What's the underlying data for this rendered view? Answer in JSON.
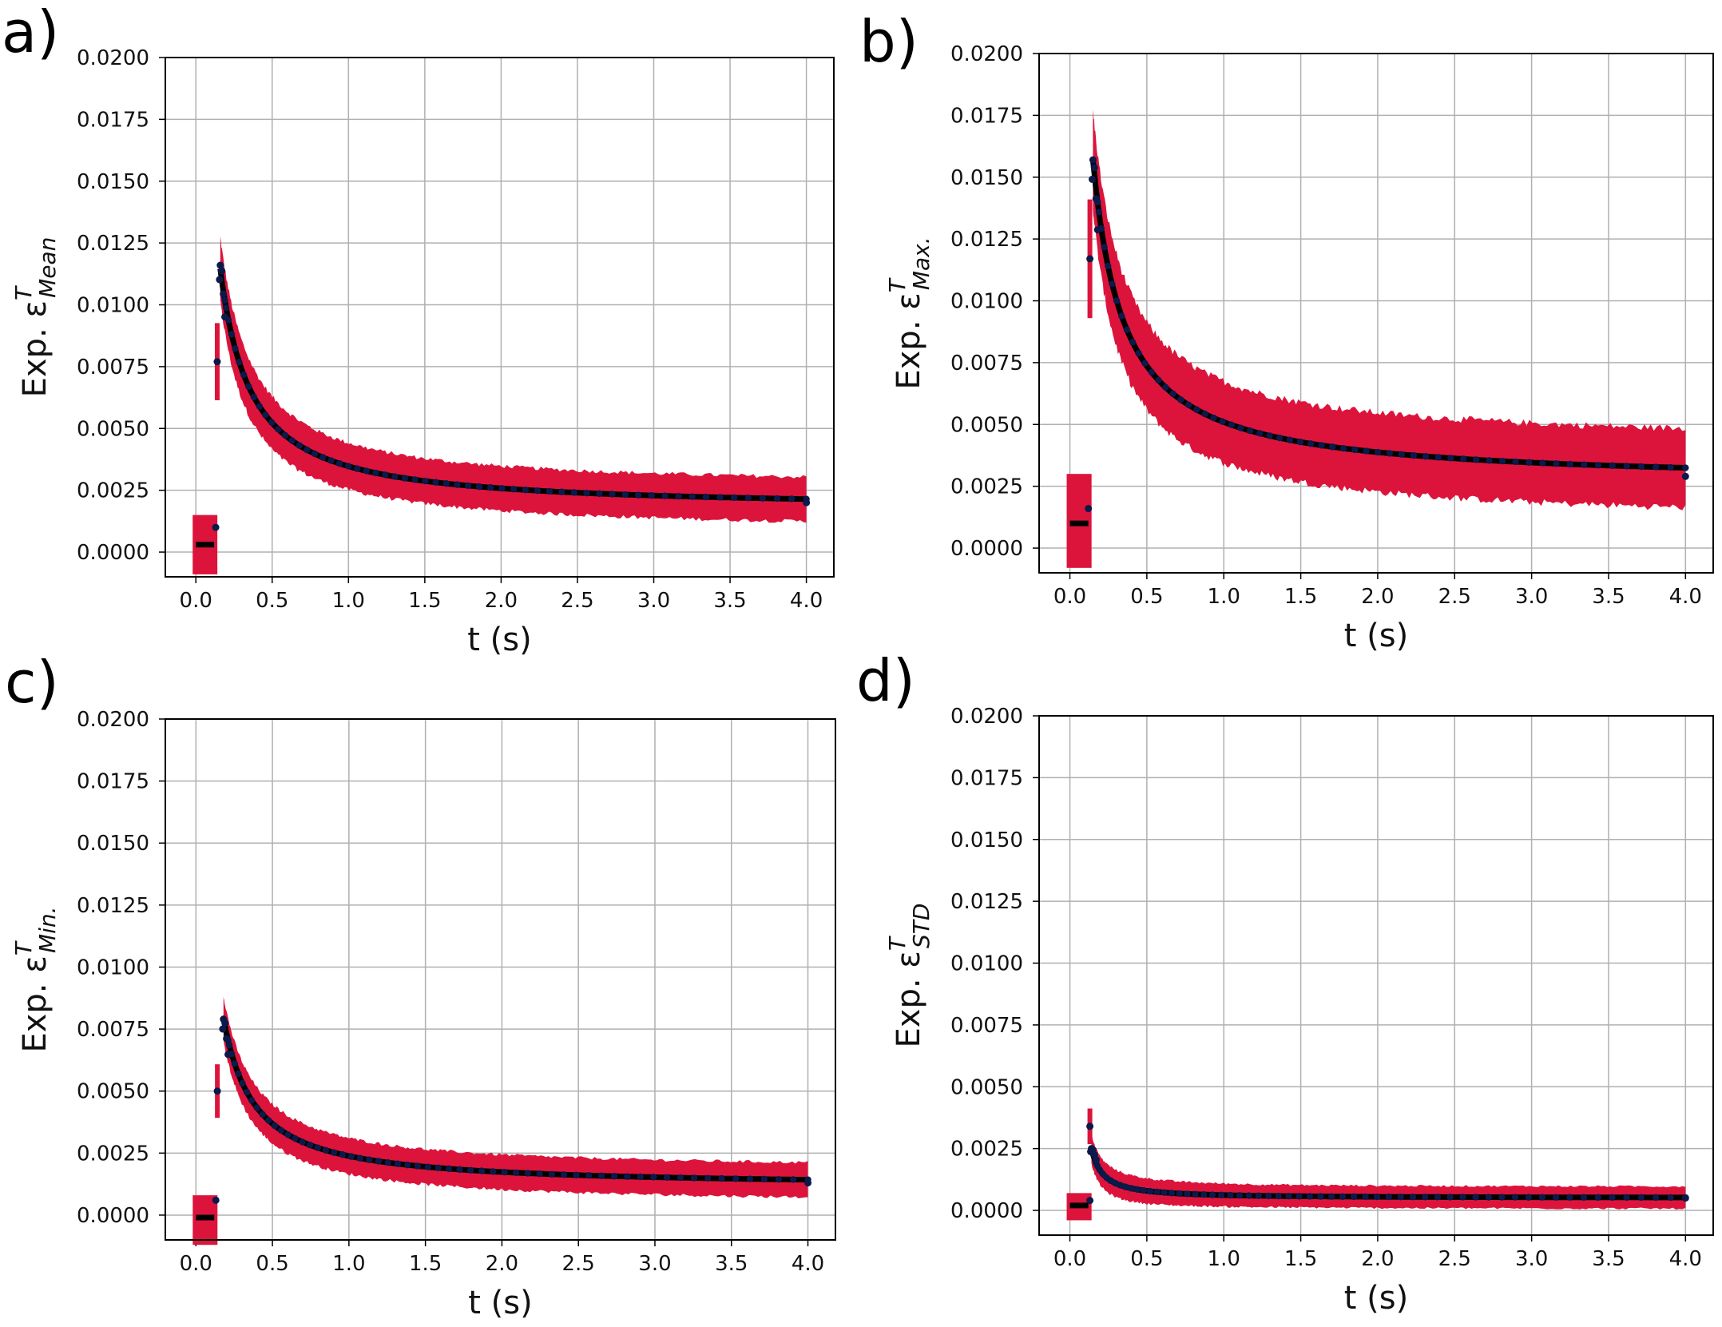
{
  "colors": {
    "band": "#dc143c",
    "marker": "#0b1a4a",
    "grid": "#b0b0b0",
    "axes": "#000000"
  },
  "chart_data": [
    {
      "panel": "a)",
      "type": "scatter",
      "ylabel_prefix": "Exp. ε",
      "ylabel_sup": "T",
      "ylabel_sub": "Mean",
      "xlabel": "t (s)",
      "xlim": [
        -0.2,
        4.18
      ],
      "ylim": [
        -0.001,
        0.02
      ],
      "xticks": [
        "0.0",
        "0.5",
        "1.0",
        "1.5",
        "2.0",
        "2.5",
        "3.0",
        "3.5",
        "4.0"
      ],
      "yticks": [
        "0.0000",
        "0.0025",
        "0.0050",
        "0.0075",
        "0.0100",
        "0.0125",
        "0.0150",
        "0.0175",
        "0.0200"
      ],
      "pre": {
        "t0": 0.0,
        "t1": 0.12,
        "value": 0.0003,
        "lower": -0.0009,
        "upper": 0.0015,
        "spike_t": 0.13,
        "spike_value": 0.001
      },
      "peak": {
        "t": 0.16,
        "value": 0.0116,
        "half_width": 0.0013,
        "rise_start_t": 0.14,
        "rise_start_value": 0.0077
      },
      "decay": {
        "floor": 0.00175,
        "amp": 0.0097,
        "tau": 0.22,
        "power": 1.1,
        "band_half_width_end": 0.0009
      },
      "end": {
        "t": 4.0,
        "value": 0.002
      }
    },
    {
      "panel": "b)",
      "type": "scatter",
      "ylabel_prefix": "Exp. ε",
      "ylabel_sup": "T",
      "ylabel_sub": "Max.",
      "xlabel": "t (s)",
      "xlim": [
        -0.2,
        4.18
      ],
      "ylim": [
        -0.001,
        0.02
      ],
      "xticks": [
        "0.0",
        "0.5",
        "1.0",
        "1.5",
        "2.0",
        "2.5",
        "3.0",
        "3.5",
        "4.0"
      ],
      "yticks": [
        "0.0000",
        "0.0025",
        "0.0050",
        "0.0075",
        "0.0100",
        "0.0125",
        "0.0150",
        "0.0175",
        "0.0200"
      ],
      "pre": {
        "t0": 0.0,
        "t1": 0.12,
        "value": 0.001,
        "lower": -0.0008,
        "upper": 0.003,
        "spike_t": 0.12,
        "spike_value": 0.0016
      },
      "peak": {
        "t": 0.15,
        "value": 0.0157,
        "half_width": 0.002,
        "rise_start_t": 0.13,
        "rise_start_value": 0.0117
      },
      "decay": {
        "floor": 0.0026,
        "amp": 0.0131,
        "tau": 0.2,
        "power": 1.0,
        "band_half_width_end": 0.0016
      },
      "end": {
        "t": 4.0,
        "value": 0.0029
      }
    },
    {
      "panel": "c)",
      "type": "scatter",
      "ylabel_prefix": "Exp. ε",
      "ylabel_sup": "T",
      "ylabel_sub": "Min.",
      "xlabel": "t (s)",
      "xlim": [
        -0.2,
        4.18
      ],
      "ylim": [
        -0.001,
        0.02
      ],
      "xticks": [
        "0.0",
        "0.5",
        "1.0",
        "1.5",
        "2.0",
        "2.5",
        "3.0",
        "3.5",
        "4.0"
      ],
      "yticks": [
        "0.0000",
        "0.0025",
        "0.0050",
        "0.0075",
        "0.0100",
        "0.0125",
        "0.0150",
        "0.0175",
        "0.0200"
      ],
      "pre": {
        "t0": 0.0,
        "t1": 0.12,
        "value": -0.0001,
        "lower": -0.0012,
        "upper": 0.0008,
        "spike_t": 0.13,
        "spike_value": 0.0006
      },
      "peak": {
        "t": 0.18,
        "value": 0.0079,
        "half_width": 0.0009,
        "rise_start_t": 0.14,
        "rise_start_value": 0.005
      },
      "decay": {
        "floor": 0.00115,
        "amp": 0.0068,
        "tau": 0.22,
        "power": 1.1,
        "band_half_width_end": 0.0007
      },
      "end": {
        "t": 4.0,
        "value": 0.0013
      }
    },
    {
      "panel": "d)",
      "type": "scatter",
      "ylabel_prefix": "Exp. ε",
      "ylabel_sup": "T",
      "ylabel_sub": "STD",
      "xlabel": "t (s)",
      "xlim": [
        -0.2,
        4.18
      ],
      "ylim": [
        -0.001,
        0.02
      ],
      "xticks": [
        "0.0",
        "0.5",
        "1.0",
        "1.5",
        "2.0",
        "2.5",
        "3.0",
        "3.5",
        "4.0"
      ],
      "yticks": [
        "0.0000",
        "0.0025",
        "0.0050",
        "0.0075",
        "0.0100",
        "0.0125",
        "0.0150",
        "0.0175",
        "0.0200"
      ],
      "pre": {
        "t0": 0.0,
        "t1": 0.12,
        "value": 0.0002,
        "lower": -0.0004,
        "upper": 0.0007,
        "spike_t": 0.13,
        "spike_value": 0.0004
      },
      "peak": {
        "t": 0.14,
        "value": 0.0025,
        "half_width": 0.0006,
        "rise_start_t": 0.13,
        "rise_start_value": 0.0034
      },
      "decay": {
        "floor": 0.0005,
        "amp": 0.002,
        "tau": 0.09,
        "power": 1.2,
        "band_half_width_end": 0.00045
      },
      "end": {
        "t": 4.0,
        "value": 0.0005
      }
    }
  ]
}
